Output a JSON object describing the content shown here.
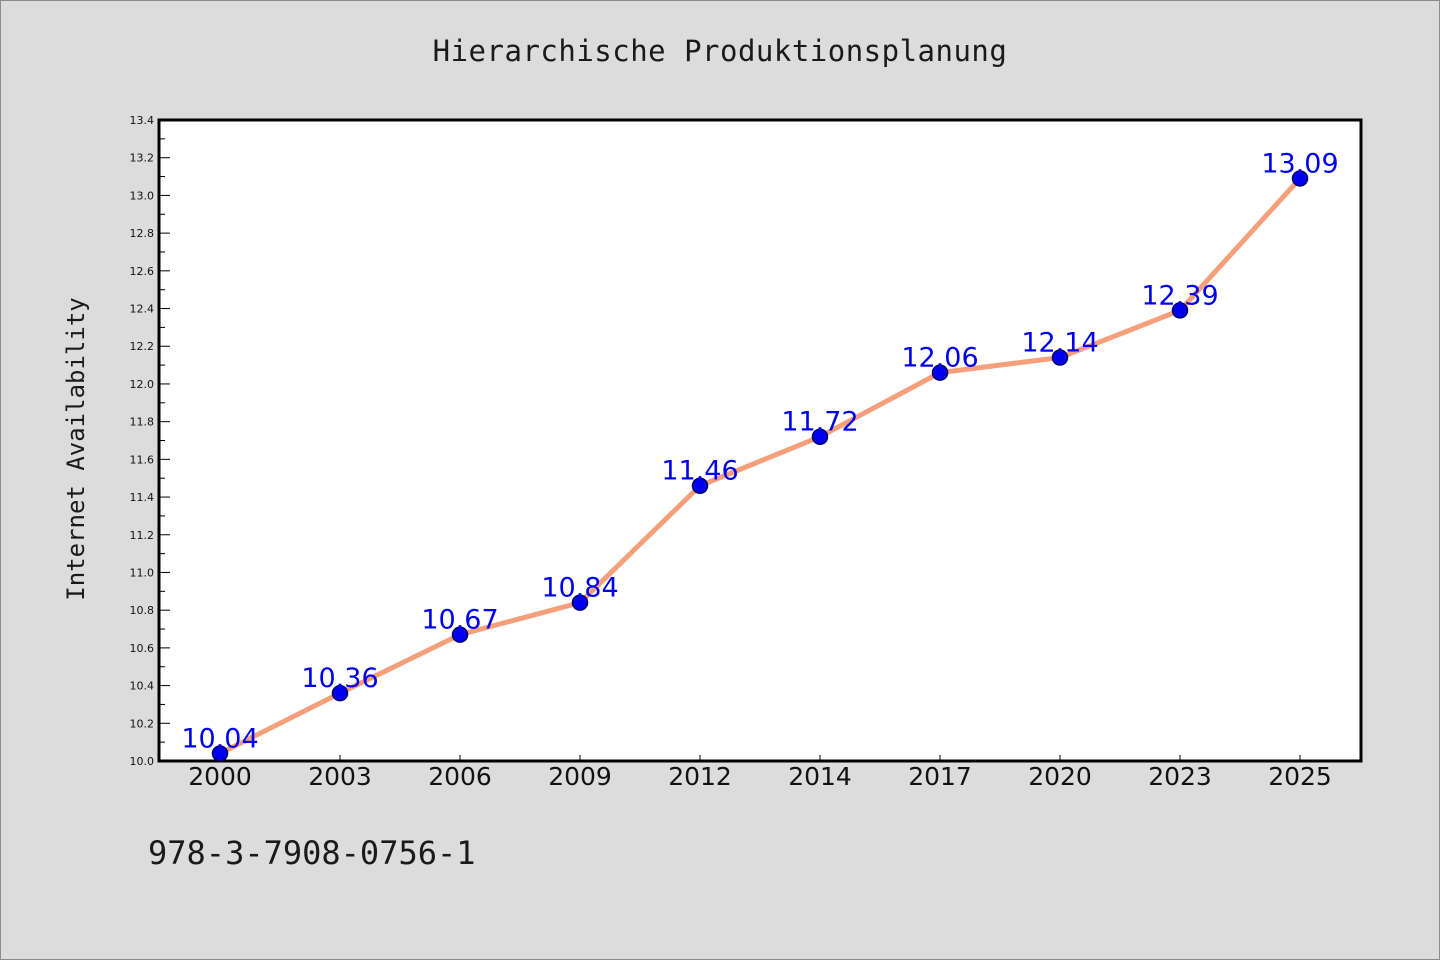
{
  "chart_data": {
    "type": "line",
    "title": "Hierarchische Produktionsplanung",
    "xlabel": "",
    "ylabel": "Internet Availability",
    "categories": [
      "2000",
      "2003",
      "2006",
      "2009",
      "2012",
      "2014",
      "2017",
      "2020",
      "2023",
      "2025"
    ],
    "series": [
      {
        "values": [
          10.04,
          10.36,
          10.67,
          10.84,
          11.46,
          11.72,
          12.06,
          12.14,
          12.39,
          13.09
        ]
      }
    ],
    "data_labels": [
      "10.04",
      "10.36",
      "10.67",
      "10.84",
      "11.46",
      "11.72",
      "12.06",
      "12.14",
      "12.39",
      "13.09"
    ],
    "ylim": [
      10.0,
      13.4
    ],
    "y_major_ticks": [
      10.0,
      10.2,
      10.4,
      10.6,
      10.8,
      11.0,
      11.2,
      11.4,
      11.6,
      11.8,
      12.0,
      12.2,
      12.4,
      12.6,
      12.8,
      13.0,
      13.2,
      13.4
    ],
    "y_tick_labels": [
      "10.0",
      "10.2",
      "10.4",
      "10.6",
      "10.8",
      "11.0",
      "11.2",
      "11.4",
      "11.6",
      "11.8",
      "12.0",
      "12.2",
      "12.4",
      "12.6",
      "12.8",
      "13.0",
      "13.2",
      "13.4"
    ],
    "y_minor_step": 0.1,
    "grid": false,
    "legend": "none",
    "colors": {
      "line": "#f5a07a",
      "marker_fill": "#0000ee",
      "marker_stroke": "#000066",
      "data_label": "#0000ee",
      "plot_background": "#ffffff",
      "figure_background": "#dcdcdc"
    }
  },
  "footer": {
    "code": "978-3-7908-0756-1"
  }
}
